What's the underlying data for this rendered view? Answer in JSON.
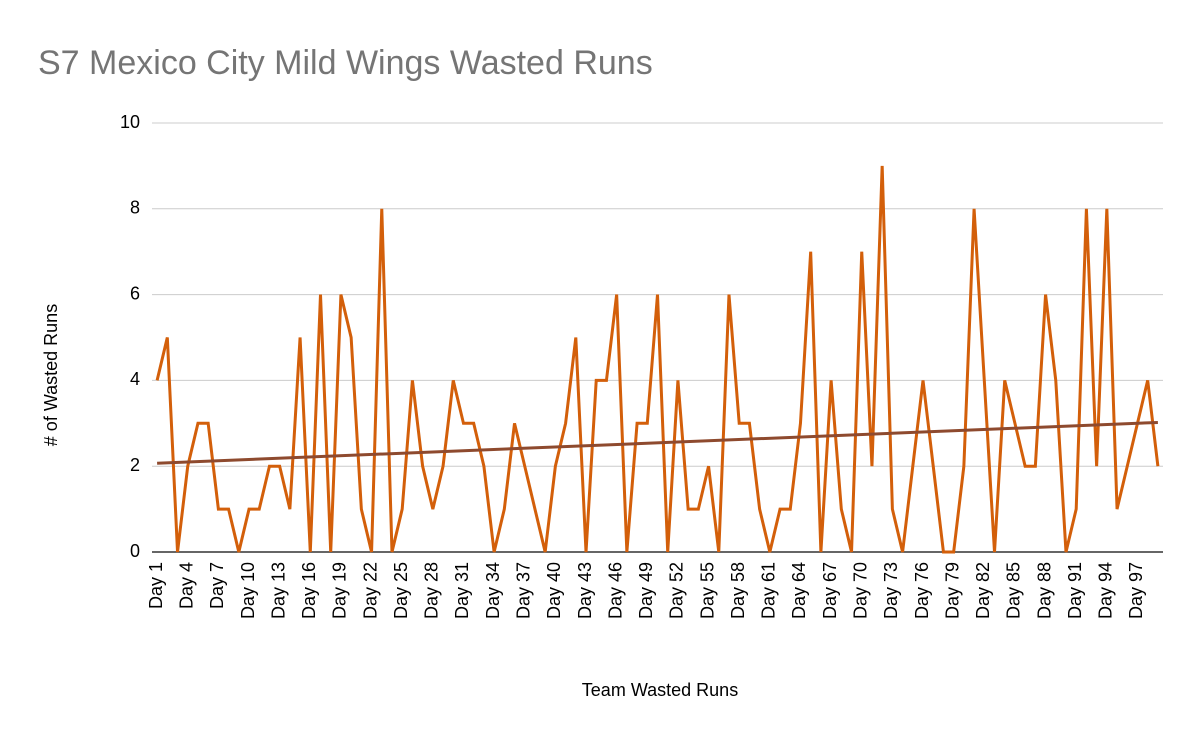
{
  "chart_data": {
    "type": "line",
    "title": "S7 Mexico City Mild Wings Wasted Runs",
    "x_label": "Team Wasted Runs",
    "y_label": "# of Wasted Runs",
    "categories": [
      "Day 1",
      null,
      null,
      "Day 4",
      null,
      null,
      "Day 7",
      null,
      null,
      "Day 10",
      null,
      null,
      "Day 13",
      null,
      null,
      "Day 16",
      null,
      null,
      "Day 19",
      null,
      null,
      "Day 22",
      null,
      null,
      "Day 25",
      null,
      null,
      "Day 28",
      null,
      null,
      "Day 31",
      null,
      null,
      "Day 34",
      null,
      null,
      "Day 37",
      null,
      null,
      "Day 40",
      null,
      null,
      "Day 43",
      null,
      null,
      "Day 46",
      null,
      null,
      "Day 49",
      null,
      null,
      "Day 52",
      null,
      null,
      "Day 55",
      null,
      null,
      "Day 58",
      null,
      null,
      "Day 61",
      null,
      null,
      "Day 64",
      null,
      null,
      "Day 67",
      null,
      null,
      "Day 70",
      null,
      null,
      "Day 73",
      null,
      null,
      "Day 76",
      null,
      null,
      "Day 79",
      null,
      null,
      "Day 82",
      null,
      null,
      "Day 85",
      null,
      null,
      "Day 88",
      null,
      null,
      "Day 91",
      null,
      null,
      "Day 94",
      null,
      null,
      "Day 97",
      null,
      null
    ],
    "series": [
      {
        "name": "Team Wasted Runs",
        "color": "#d35f0a",
        "values": [
          4,
          5,
          0,
          2,
          3,
          3,
          1,
          1,
          0,
          1,
          1,
          2,
          2,
          1,
          5,
          0,
          6,
          0,
          6,
          5,
          1,
          0,
          8,
          0,
          1,
          4,
          2,
          1,
          2,
          4,
          3,
          3,
          2,
          0,
          1,
          3,
          2,
          1,
          0,
          2,
          3,
          5,
          0,
          4,
          4,
          6,
          0,
          3,
          3,
          6,
          0,
          4,
          1,
          1,
          2,
          0,
          6,
          3,
          3,
          1,
          0,
          1,
          1,
          3,
          7,
          0,
          4,
          1,
          0,
          7,
          2,
          9,
          1,
          0,
          2,
          4,
          2,
          0,
          0,
          2,
          8,
          4,
          0,
          4,
          3,
          2,
          2,
          6,
          4,
          0,
          1,
          8,
          2,
          8,
          1,
          2,
          3,
          4,
          2
        ]
      }
    ],
    "trendline": {
      "color": "#8e4a2e",
      "values": [
        2.07,
        3.02
      ]
    },
    "ylim": [
      0,
      10
    ],
    "yticks": [
      0,
      2,
      4,
      6,
      8,
      10
    ],
    "grid": true
  }
}
